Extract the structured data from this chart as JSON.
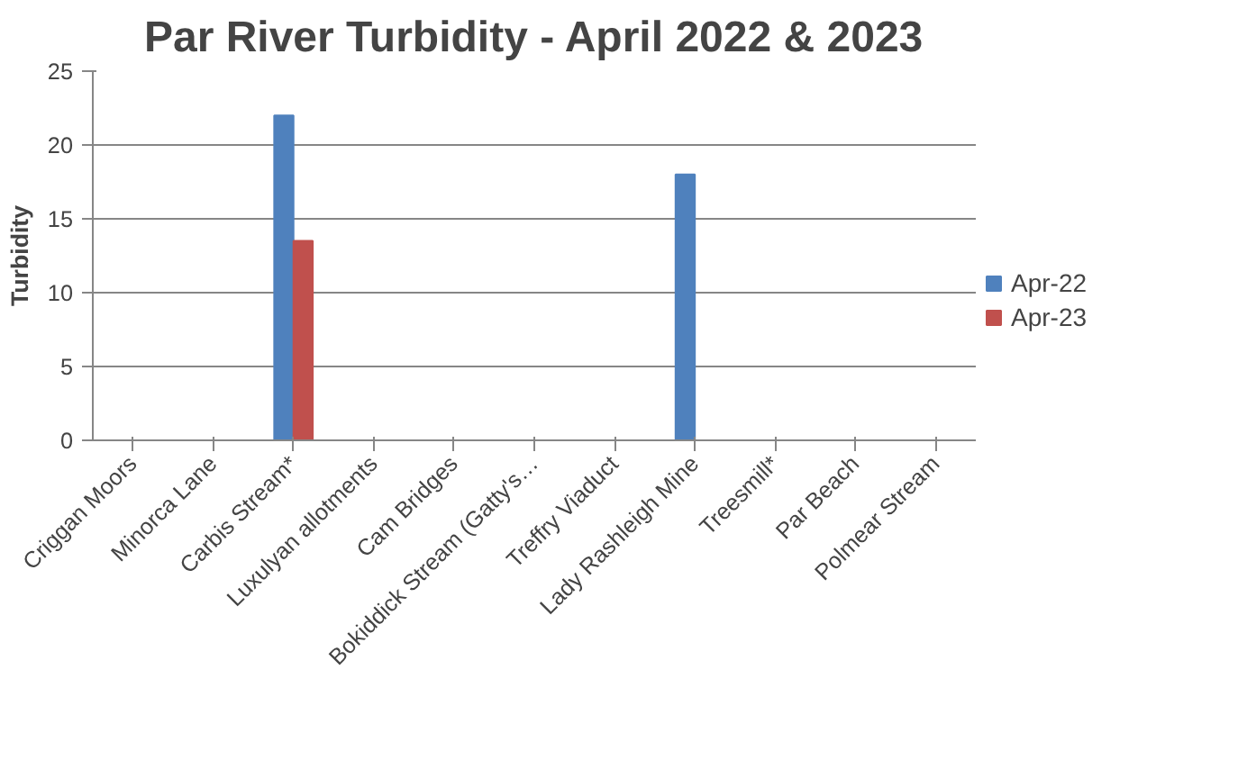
{
  "chart_data": {
    "type": "bar",
    "title": "Par River Turbidity - April 2022 & 2023",
    "ylabel": "Turbidity",
    "categories": [
      "Criggan Moors",
      "Minorca Lane",
      "Carbis Stream*",
      "Luxulyan allotments",
      "Cam Bridges",
      "Bokiddick Stream (Gatty's…",
      "Treffry Viaduct",
      "Lady Rashleigh Mine",
      "Treesmill*",
      "Par Beach",
      "Polmear Stream"
    ],
    "series": [
      {
        "name": "Apr-22",
        "color": "#4f81bd",
        "values": [
          null,
          null,
          22,
          null,
          null,
          null,
          null,
          18,
          null,
          null,
          null
        ]
      },
      {
        "name": "Apr-23",
        "color": "#c0504d",
        "values": [
          null,
          null,
          13.5,
          null,
          null,
          null,
          null,
          null,
          null,
          null,
          null
        ]
      }
    ],
    "ylim": [
      0,
      25
    ],
    "yticks": [
      0,
      5,
      10,
      15,
      20,
      25
    ],
    "grid": "y",
    "legend": "right"
  }
}
